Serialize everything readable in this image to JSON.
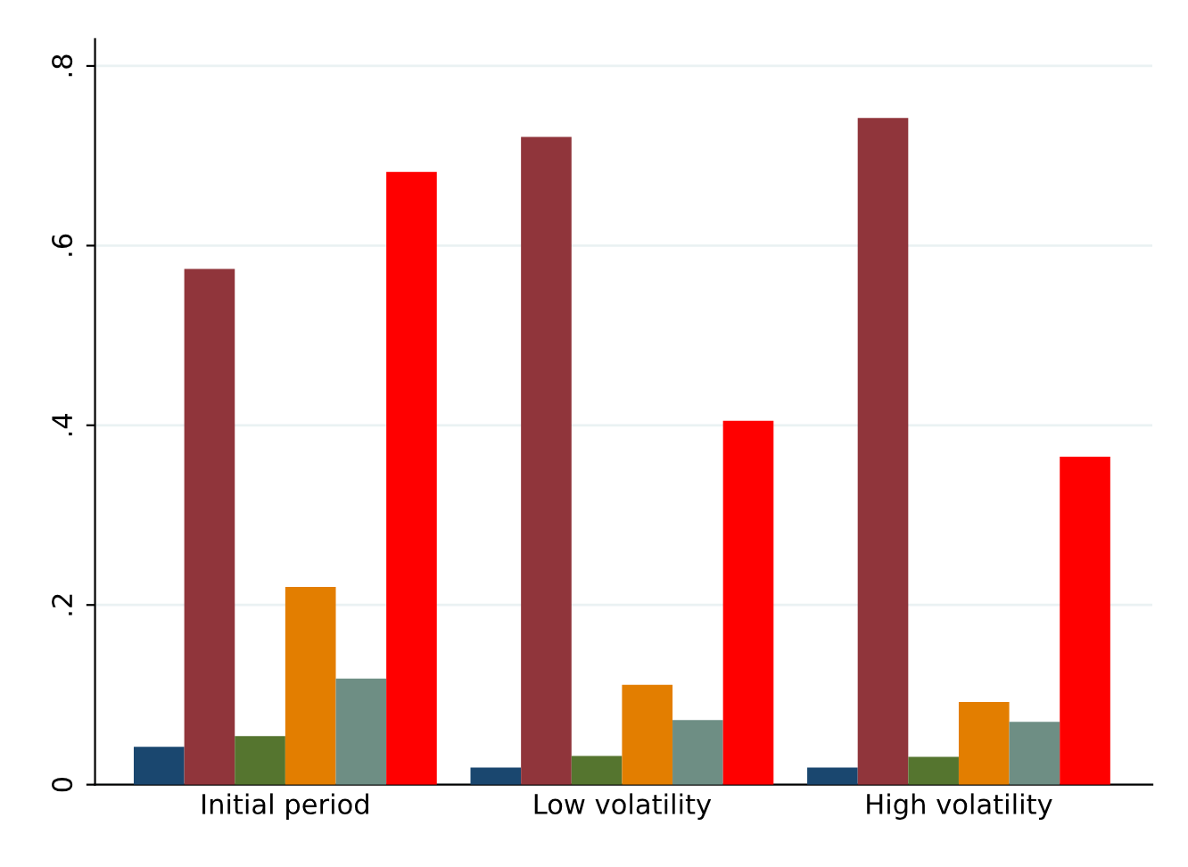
{
  "chart_data": {
    "type": "bar",
    "categories": [
      "Initial period",
      "Low volatility",
      "High volatility"
    ],
    "series": [
      {
        "color": "#1a476f",
        "values": [
          0.042,
          0.019,
          0.019
        ]
      },
      {
        "color": "#90353b",
        "values": [
          0.574,
          0.721,
          0.742
        ]
      },
      {
        "color": "#55752f",
        "values": [
          0.054,
          0.032,
          0.031
        ]
      },
      {
        "color": "#e37e00",
        "values": [
          0.22,
          0.111,
          0.092
        ]
      },
      {
        "color": "#6e8e84",
        "values": [
          0.118,
          0.072,
          0.07
        ]
      },
      {
        "color": "#ff0000",
        "values": [
          0.682,
          0.405,
          0.365
        ]
      }
    ],
    "ylim": [
      0,
      0.83
    ],
    "yticks": [
      {
        "value": 0,
        "label": "0"
      },
      {
        "value": 0.2,
        "label": ".2"
      },
      {
        "value": 0.4,
        "label": ".4"
      },
      {
        "value": 0.6,
        "label": ".6"
      },
      {
        "value": 0.8,
        "label": ".8"
      }
    ],
    "grid": "y",
    "legend": false
  }
}
